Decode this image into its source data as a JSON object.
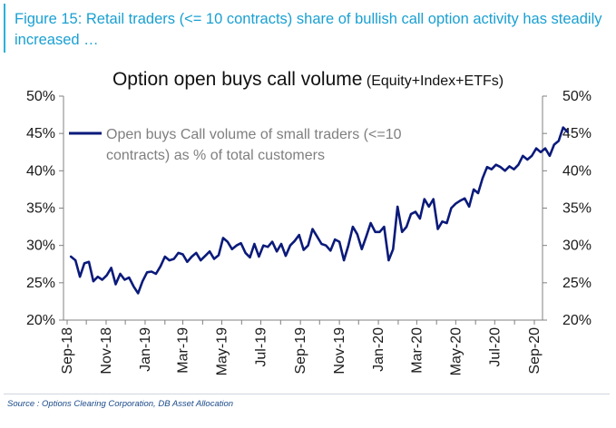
{
  "figure_title": "Figure 15: Retail traders (<= 10 contracts) share of bullish call option activity has steadily increased …",
  "source_note": "Source : Options Clearing Corporation, DB Asset Allocation",
  "colors": {
    "header_accent": "#1aa0d2",
    "series_line": "#0a1a7a"
  },
  "chart_data": {
    "type": "line",
    "title": "Option open buys call volume",
    "subtitle": "(Equity+Index+ETFs)",
    "xlabel": "",
    "ylabel": "",
    "ylim": [
      20,
      50
    ],
    "y_ticks": [
      20,
      25,
      30,
      35,
      40,
      45,
      50
    ],
    "y_tick_labels": [
      "20%",
      "25%",
      "30%",
      "35%",
      "40%",
      "45%",
      "50%"
    ],
    "y_axes": [
      "left",
      "right"
    ],
    "x_tick_labels": [
      "Sep-18",
      "Nov-18",
      "Jan-19",
      "Mar-19",
      "May-19",
      "Jul-19",
      "Sep-19",
      "Nov-19",
      "Jan-20",
      "Mar-20",
      "May-20",
      "Jul-20",
      "Sep-20"
    ],
    "grid": false,
    "legend_position": "top-left",
    "series": [
      {
        "name": "Open buys Call volume of small traders (<=10 contracts) as % of total customers",
        "x_start": "2018-09-07",
        "x_step": "weekly",
        "values": [
          28.5,
          28.0,
          25.8,
          27.6,
          27.8,
          25.2,
          25.8,
          25.4,
          26.0,
          27.0,
          24.8,
          26.2,
          25.4,
          25.7,
          24.5,
          23.6,
          25.2,
          26.4,
          26.5,
          26.2,
          27.2,
          28.5,
          28.0,
          28.2,
          29.0,
          28.8,
          27.8,
          28.5,
          29.0,
          28.0,
          28.6,
          29.2,
          28.2,
          28.7,
          31.0,
          30.5,
          29.5,
          30.0,
          30.3,
          29.0,
          28.4,
          30.2,
          28.5,
          30.0,
          29.8,
          30.5,
          29.2,
          30.2,
          28.6,
          30.0,
          30.6,
          31.4,
          29.4,
          30.0,
          32.2,
          31.2,
          30.2,
          30.0,
          29.3,
          30.8,
          30.5,
          28.0,
          30.0,
          32.5,
          31.5,
          29.5,
          31.2,
          33.0,
          31.8,
          31.8,
          32.5,
          28.0,
          29.5,
          35.2,
          31.8,
          32.5,
          34.2,
          34.5,
          33.6,
          36.2,
          35.2,
          36.2,
          32.2,
          33.2,
          33.0,
          35.0,
          35.6,
          36.0,
          36.3,
          35.2,
          37.5,
          37.0,
          39.0,
          40.5,
          40.2,
          40.8,
          40.5,
          40.0,
          40.6,
          40.2,
          40.8,
          42.0,
          41.5,
          42.0,
          43.0,
          42.5,
          43.0,
          42.0,
          43.5,
          44.0,
          45.8,
          45.2
        ]
      }
    ]
  }
}
